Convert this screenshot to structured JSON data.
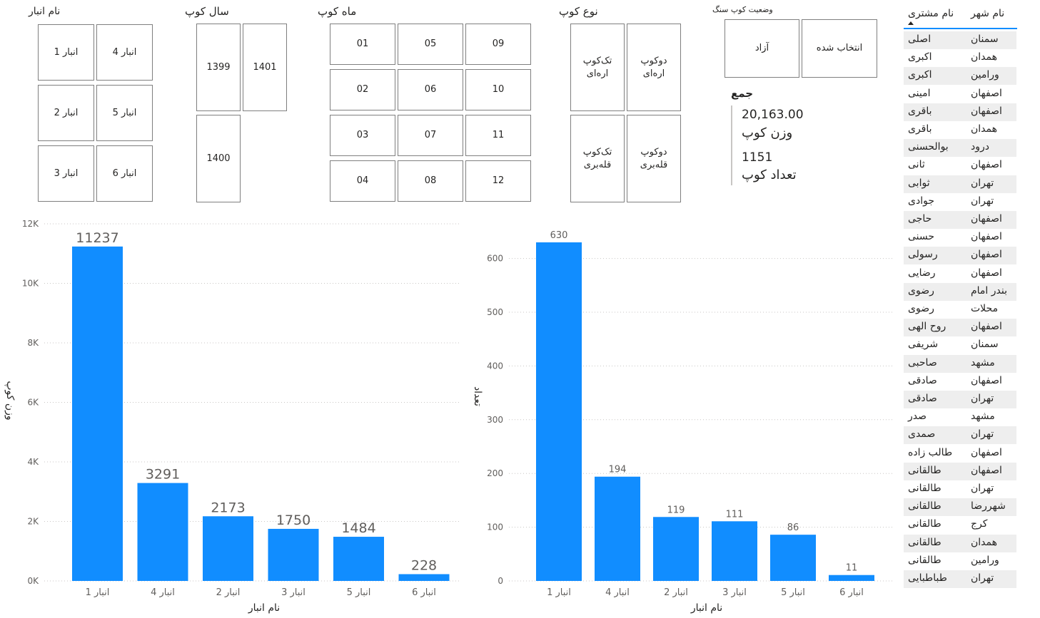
{
  "slicers": {
    "warehouse": {
      "title": "نام انبار",
      "options": [
        "انبار 1",
        "انبار 4",
        "انبار 2",
        "انبار 5",
        "انبار 3",
        "انبار 6"
      ]
    },
    "year": {
      "title": "سال کوپ",
      "options": [
        "1399",
        "1401",
        "1400"
      ]
    },
    "month": {
      "title": "ماه کوپ",
      "options": [
        "01",
        "05",
        "09",
        "02",
        "06",
        "10",
        "03",
        "07",
        "11",
        "04",
        "08",
        "12"
      ]
    },
    "type": {
      "title": "نوع کوپ",
      "options": [
        [
          "تک‌کوپ",
          "اره‌ای"
        ],
        [
          "دوکوپ",
          "اره‌ای"
        ],
        [
          "تک‌کوپ",
          "قله‌بری"
        ],
        [
          "دوکوپ",
          "قله‌بری"
        ]
      ]
    },
    "status": {
      "title": "وضعیت کوپ سنگ",
      "options": [
        "آزاد",
        "انتخاب شده"
      ]
    }
  },
  "card": {
    "title": "جمع",
    "weight_value": "20,163.00",
    "weight_label": "وزن کوپ",
    "count_value": "1151",
    "count_label": "تعداد کوپ"
  },
  "table": {
    "headers": {
      "customer": "نام مشتری",
      "city": "نام شهر"
    },
    "rows": [
      {
        "customer": "اصلی",
        "city": "سمنان"
      },
      {
        "customer": "اکبری",
        "city": "همدان"
      },
      {
        "customer": "اکبری",
        "city": "ورامین"
      },
      {
        "customer": "امینی",
        "city": "اصفهان"
      },
      {
        "customer": "باقری",
        "city": "اصفهان"
      },
      {
        "customer": "باقری",
        "city": "همدان"
      },
      {
        "customer": "بوالحسنی",
        "city": "درود"
      },
      {
        "customer": "ثانی",
        "city": "اصفهان"
      },
      {
        "customer": "ثوابی",
        "city": "تهران"
      },
      {
        "customer": "جوادی",
        "city": "تهران"
      },
      {
        "customer": "حاجی",
        "city": "اصفهان"
      },
      {
        "customer": "حسنی",
        "city": "اصفهان"
      },
      {
        "customer": "رسولی",
        "city": "اصفهان"
      },
      {
        "customer": "رضایی",
        "city": "اصفهان"
      },
      {
        "customer": "رضوی",
        "city": "بندر امام"
      },
      {
        "customer": "رضوی",
        "city": "محلات"
      },
      {
        "customer": "روح الهی",
        "city": "اصفهان"
      },
      {
        "customer": "شریفی",
        "city": "سمنان"
      },
      {
        "customer": "صاحبی",
        "city": "مشهد"
      },
      {
        "customer": "صادقی",
        "city": "اصفهان"
      },
      {
        "customer": "صادقی",
        "city": "تهران"
      },
      {
        "customer": "صدر",
        "city": "مشهد"
      },
      {
        "customer": "صمدی",
        "city": "تهران"
      },
      {
        "customer": "طالب زاده",
        "city": "اصفهان"
      },
      {
        "customer": "طالقانی",
        "city": "اصفهان"
      },
      {
        "customer": "طالقانی",
        "city": "تهران"
      },
      {
        "customer": "طالقانی",
        "city": "شهررضا"
      },
      {
        "customer": "طالقانی",
        "city": "کرج"
      },
      {
        "customer": "طالقانی",
        "city": "همدان"
      },
      {
        "customer": "طالقانی",
        "city": "ورامین"
      },
      {
        "customer": "طباطبایی",
        "city": "تهران"
      }
    ]
  },
  "colors": {
    "bar": "#118DFF",
    "row_alt": "#eeeeee",
    "border": "#7f7f7f"
  },
  "chart_data": [
    {
      "type": "bar",
      "categories": [
        "انبار 1",
        "انبار 4",
        "انبار 2",
        "انبار 3",
        "انبار 5",
        "انبار 6"
      ],
      "values": [
        11237,
        3291,
        2173,
        1750,
        1484,
        228
      ],
      "xlabel": "نام انبار",
      "ylabel": "وزن کوپ",
      "ylim": [
        0,
        12000
      ],
      "yticks": [
        "0K",
        "2K",
        "4K",
        "6K",
        "8K",
        "10K",
        "12K"
      ],
      "grid": true
    },
    {
      "type": "bar",
      "categories": [
        "انبار 1",
        "انبار 4",
        "انبار 2",
        "انبار 3",
        "انبار 5",
        "انبار 6"
      ],
      "values": [
        630,
        194,
        119,
        111,
        86,
        11
      ],
      "xlabel": "نام انبار",
      "ylabel": "تعداد",
      "ylim": [
        0,
        630
      ],
      "yticks": [
        "0",
        "100",
        "200",
        "300",
        "400",
        "500",
        "600"
      ],
      "grid": true
    }
  ]
}
